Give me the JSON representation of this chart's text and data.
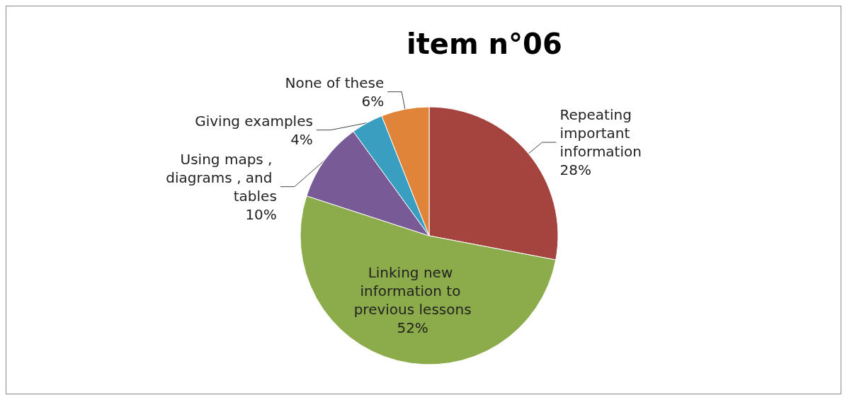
{
  "chart_data": {
    "type": "pie",
    "title": "item n°06",
    "categories": [
      "Repeating important information",
      "Linking new information to previous lessons",
      "Using maps , diagrams , and tables",
      "Giving examples",
      "None of these"
    ],
    "values": [
      28,
      52,
      10,
      4,
      6
    ],
    "value_labels": [
      "28%",
      "52%",
      "10%",
      "4%",
      "6%"
    ],
    "colors": [
      "#a5443f",
      "#8cab4a",
      "#775a96",
      "#3a9ec0",
      "#e0843a"
    ]
  }
}
